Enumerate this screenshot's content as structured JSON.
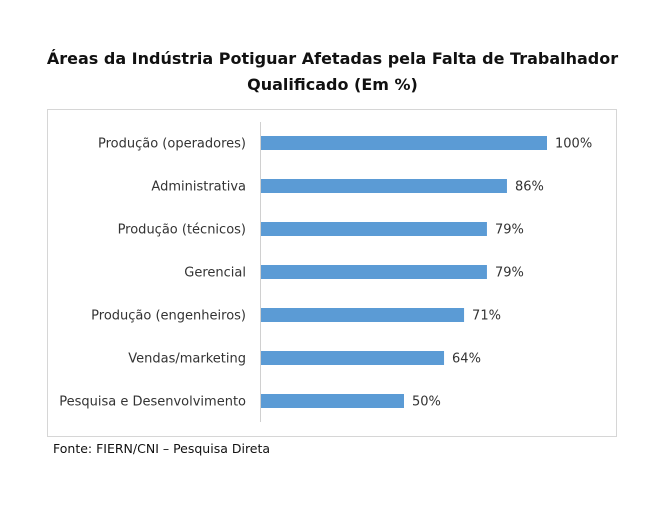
{
  "chart_data": {
    "type": "bar",
    "orientation": "horizontal",
    "title_line1": "Áreas da Indústria Potiguar Afetadas pela Falta de Trabalhador",
    "title_line2": "Qualificado (Em %)",
    "categories": [
      "Produção (operadores)",
      "Administrativa",
      "Produção (técnicos)",
      "Gerencial",
      "Produção (engenheiros)",
      "Vendas/marketing",
      "Pesquisa e Desenvolvimento"
    ],
    "values": [
      100,
      86,
      79,
      79,
      71,
      64,
      50
    ],
    "value_labels": [
      "100%",
      "86%",
      "79%",
      "79%",
      "71%",
      "64%",
      "50%"
    ],
    "xlim": [
      0,
      100
    ],
    "grid": false,
    "bar_color": "#5b9bd5"
  },
  "source": "Fonte: FIERN/CNI – Pesquisa Direta"
}
